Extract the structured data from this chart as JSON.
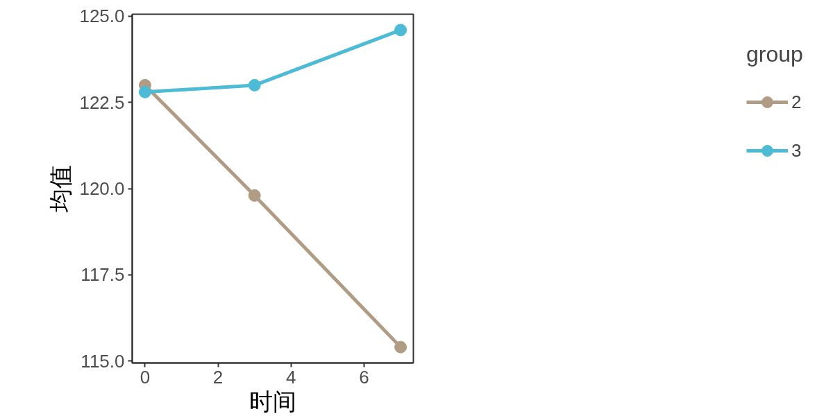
{
  "chart_data": {
    "type": "line",
    "xlabel": "时间",
    "ylabel": "均值",
    "legend_title": "group",
    "x": [
      0,
      3,
      7
    ],
    "series": [
      {
        "name": "2",
        "color": "#b09c85",
        "values": [
          123.0,
          119.8,
          115.4
        ]
      },
      {
        "name": "3",
        "color": "#4dbbd5",
        "values": [
          122.8,
          123.0,
          124.6
        ]
      }
    ],
    "xlim": [
      -0.35,
      7.35
    ],
    "xticks": [
      0,
      2,
      4,
      6
    ],
    "ylim": [
      114.94,
      125.06
    ],
    "yticks": [
      {
        "value": 115,
        "label": "115.0"
      },
      {
        "value": 117.5,
        "label": "117.5"
      },
      {
        "value": 120,
        "label": "120.0"
      },
      {
        "value": 122.5,
        "label": "122.5"
      },
      {
        "value": 125,
        "label": "125.0"
      }
    ],
    "grid": false,
    "legend": "right",
    "marker": "circle",
    "line_style": "solid"
  }
}
